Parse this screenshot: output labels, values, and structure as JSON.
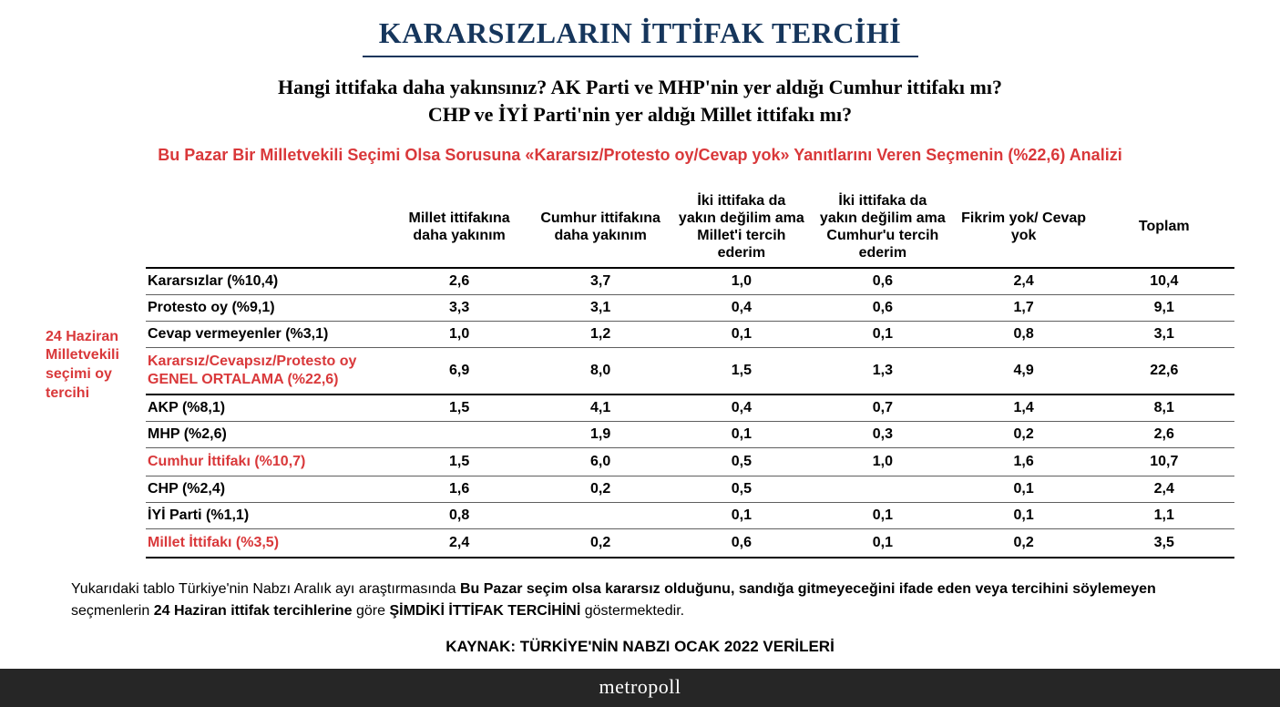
{
  "title": "KARARSIZLARIN İTTİFAK TERCİHİ",
  "subtitle1_line1": "Hangi ittifaka daha yakınsınız? AK Parti ve MHP'nin yer aldığı Cumhur ittifakı mı?",
  "subtitle1_line2": "CHP ve İYİ Parti'nin yer aldığı Millet ittifakı mı?",
  "subtitle2": "Bu Pazar Bir Milletvekili Seçimi Olsa Sorusuna «Kararsız/Protesto oy/Cevap yok» Yanıtlarını Veren Seçmenin (%22,6) Analizi",
  "row_group_label": "24 Haziran Milletvekili seçimi oy tercihi",
  "columns": [
    "Millet ittifakına daha yakınım",
    "Cumhur ittifakına daha yakınım",
    "İki ittifaka da yakın değilim ama Millet'i tercih ederim",
    "İki ittifaka da yakın değilim ama Cumhur'u tercih ederim",
    "Fikrim yok/ Cevap yok",
    "Toplam"
  ],
  "section1": [
    {
      "label": "Kararsızlar (%10,4)",
      "vals": [
        "2,6",
        "3,7",
        "1,0",
        "0,6",
        "2,4",
        "10,4"
      ],
      "hl": false
    },
    {
      "label": "Protesto oy (%9,1)",
      "vals": [
        "3,3",
        "3,1",
        "0,4",
        "0,6",
        "1,7",
        "9,1"
      ],
      "hl": false
    },
    {
      "label": "Cevap vermeyenler (%3,1)",
      "vals": [
        "1,0",
        "1,2",
        "0,1",
        "0,1",
        "0,8",
        "3,1"
      ],
      "hl": false
    },
    {
      "label": "Kararsız/Cevapsız/Protesto oy GENEL ORTALAMA  (%22,6)",
      "vals": [
        "6,9",
        "8,0",
        "1,5",
        "1,3",
        "4,9",
        "22,6"
      ],
      "hl": true
    }
  ],
  "section2": [
    {
      "label": "AKP (%8,1)",
      "vals": [
        "1,5",
        "4,1",
        "0,4",
        "0,7",
        "1,4",
        "8,1"
      ],
      "hl": false
    },
    {
      "label": "MHP (%2,6)",
      "vals": [
        "",
        "1,9",
        "0,1",
        "0,3",
        "0,2",
        "2,6"
      ],
      "hl": false
    },
    {
      "label": "Cumhur İttifakı (%10,7)",
      "vals": [
        "1,5",
        "6,0",
        "0,5",
        "1,0",
        "1,6",
        "10,7"
      ],
      "hl": true
    },
    {
      "label": "CHP (%2,4)",
      "vals": [
        "1,6",
        "0,2",
        "0,5",
        "",
        "0,1",
        "2,4"
      ],
      "hl": false
    },
    {
      "label": "İYİ Parti (%1,1)",
      "vals": [
        "0,8",
        "",
        "0,1",
        "0,1",
        "0,1",
        "1,1"
      ],
      "hl": false
    },
    {
      "label": "Millet İttifakı (%3,5)",
      "vals": [
        "2,4",
        "0,2",
        "0,6",
        "0,1",
        "0,2",
        "3,5"
      ],
      "hl": true
    }
  ],
  "footnote_parts": {
    "a": "Yukarıdaki tablo Türkiye'nin Nabzı Aralık ayı araştırmasında ",
    "b": "Bu Pazar seçim olsa kararsız olduğunu, sandığa gitmeyeceğini ifade eden veya tercihini söylemeyen",
    "c": " seçmenlerin ",
    "d": "24 Haziran ittifak tercihlerine",
    "e": " göre ",
    "f": "ŞİMDİKİ İTTİFAK TERCİHİNİ",
    "g": " göstermektedir."
  },
  "source": "KAYNAK: TÜRKİYE'NİN NABZI OCAK 2022 VERİLERİ",
  "footer": "metropoll"
}
